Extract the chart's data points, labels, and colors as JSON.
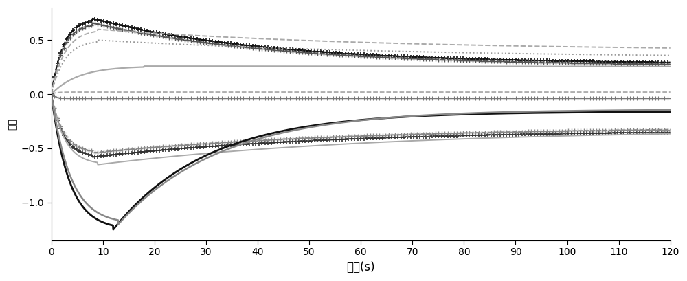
{
  "title": "",
  "xlabel": "时间(s)",
  "ylabel": "噪声",
  "xlim": [
    0,
    120
  ],
  "ylim": [
    -1.35,
    0.8
  ],
  "yticks": [
    0.5,
    0.0,
    -0.5,
    -1.0
  ],
  "xticks": [
    0,
    10,
    20,
    30,
    40,
    50,
    60,
    70,
    80,
    90,
    100,
    110,
    120
  ],
  "xlabel_fontsize": 12,
  "ylabel_fontsize": 10,
  "tick_fontsize": 10,
  "line_configs": [
    {
      "ls": "--",
      "color": "#111111",
      "lw": 1.6,
      "marker": "+",
      "ms": 5,
      "mew": 1.2,
      "markevery": 12,
      "peak": 0.7,
      "tpeak": 8,
      "final": 0.28,
      "decay": 0.03
    },
    {
      "ls": "--",
      "color": "#555555",
      "lw": 1.4,
      "marker": "+",
      "ms": 5,
      "mew": 1.0,
      "markevery": 12,
      "peak": 0.66,
      "tpeak": 8,
      "final": 0.26,
      "decay": 0.028
    },
    {
      "ls": "--",
      "color": "#aaaaaa",
      "lw": 1.4,
      "marker": null,
      "ms": 0,
      "mew": 0,
      "markevery": 1,
      "peak": 0.6,
      "tpeak": 9,
      "final": 0.4,
      "decay": 0.018
    },
    {
      "ls": ":",
      "color": "#999999",
      "lw": 1.4,
      "marker": null,
      "ms": 0,
      "mew": 0,
      "markevery": 1,
      "peak": 0.5,
      "tpeak": 9,
      "final": 0.33,
      "decay": 0.016
    },
    {
      "ls": "-",
      "color": "#aaaaaa",
      "lw": 1.6,
      "marker": null,
      "ms": 0,
      "mew": 0,
      "markevery": 1,
      "peak": 0.26,
      "tpeak": 18,
      "final": 0.24,
      "decay": 0.002
    },
    {
      "ls": "--",
      "color": "#aaaaaa",
      "lw": 1.3,
      "marker": null,
      "ms": 0,
      "mew": 0,
      "markevery": 1,
      "peak": 0.02,
      "tpeak": 3,
      "final": 0.02,
      "decay": 0.0
    },
    {
      "ls": "-",
      "color": "#777777",
      "lw": 1.0,
      "marker": "+",
      "ms": 4,
      "mew": 0.8,
      "markevery": 12,
      "peak": -0.04,
      "tpeak": 3,
      "final": -0.04,
      "decay": 0.0
    },
    {
      "ls": "--",
      "color": "#333333",
      "lw": 1.4,
      "marker": "+",
      "ms": 5,
      "mew": 1.2,
      "markevery": 12,
      "peak": -0.58,
      "tpeak": 8,
      "final": -0.33,
      "decay": 0.022
    },
    {
      "ls": "--",
      "color": "#888888",
      "lw": 1.2,
      "marker": "+",
      "ms": 5,
      "mew": 1.0,
      "markevery": 12,
      "peak": -0.54,
      "tpeak": 8,
      "final": -0.3,
      "decay": 0.02
    },
    {
      "ls": "-",
      "color": "#aaaaaa",
      "lw": 1.4,
      "marker": null,
      "ms": 0,
      "mew": 0,
      "markevery": 1,
      "peak": -0.65,
      "tpeak": 9,
      "final": -0.32,
      "decay": 0.018
    },
    {
      "ls": "-",
      "color": "#111111",
      "lw": 2.0,
      "marker": null,
      "ms": 0,
      "mew": 0,
      "markevery": 1,
      "peak": -1.25,
      "tpeak": 12,
      "final": -0.16,
      "decay": 0.055
    },
    {
      "ls": "-",
      "color": "#888888",
      "lw": 1.8,
      "marker": null,
      "ms": 0,
      "mew": 0,
      "markevery": 1,
      "peak": -1.2,
      "tpeak": 13,
      "final": -0.14,
      "decay": 0.05
    }
  ]
}
